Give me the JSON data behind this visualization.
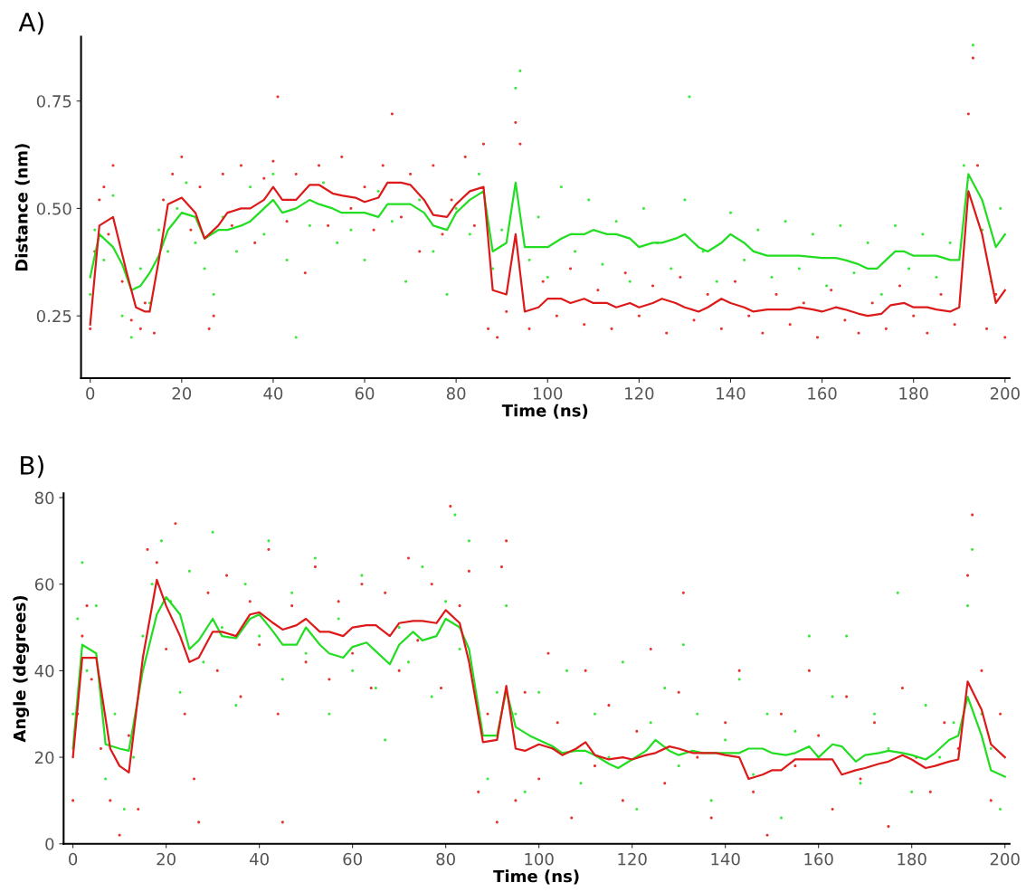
{
  "chart_data": [
    {
      "type": "scatter",
      "xlabel": "Time (ns)",
      "ylabel": "Distance (nm)",
      "annotations": [
        "A)"
      ],
      "xlim": [
        -2,
        201
      ],
      "ylim": [
        0.105,
        0.9
      ],
      "xticks": [
        0,
        20,
        40,
        60,
        80,
        100,
        120,
        140,
        160,
        180,
        200
      ],
      "yticks": [
        {
          "value": 0.25,
          "label": "0.25"
        },
        {
          "value": 0.5,
          "label": "0.50"
        },
        {
          "value": 0.75,
          "label": "0.75"
        }
      ],
      "grid": false,
      "series": [
        {
          "color": "#3de83d",
          "x": [
            0,
            1,
            3,
            5,
            7,
            9,
            11,
            13,
            15,
            17,
            19,
            21,
            23,
            25,
            27,
            29,
            32,
            35,
            38,
            40,
            43,
            45,
            48,
            51,
            54,
            57,
            60,
            63,
            66,
            69,
            72,
            75,
            78,
            80,
            83,
            85,
            88,
            90,
            93,
            94,
            96,
            98,
            100,
            103,
            106,
            109,
            112,
            115,
            118,
            121,
            124,
            127,
            130,
            131,
            134,
            137,
            140,
            143,
            146,
            149,
            152,
            155,
            158,
            161,
            164,
            167,
            170,
            173,
            176,
            179,
            182,
            185,
            188,
            191,
            193,
            195,
            197,
            199
          ],
          "values": [
            0.3,
            0.45,
            0.38,
            0.53,
            0.25,
            0.2,
            0.36,
            0.28,
            0.45,
            0.4,
            0.5,
            0.56,
            0.42,
            0.36,
            0.3,
            0.48,
            0.4,
            0.55,
            0.44,
            0.58,
            0.38,
            0.2,
            0.46,
            0.56,
            0.42,
            0.45,
            0.38,
            0.54,
            0.47,
            0.33,
            0.52,
            0.4,
            0.3,
            0.5,
            0.44,
            0.58,
            0.36,
            0.45,
            0.78,
            0.82,
            0.38,
            0.48,
            0.34,
            0.55,
            0.4,
            0.52,
            0.37,
            0.47,
            0.33,
            0.5,
            0.42,
            0.36,
            0.52,
            0.76,
            0.4,
            0.33,
            0.49,
            0.38,
            0.45,
            0.34,
            0.47,
            0.36,
            0.44,
            0.32,
            0.46,
            0.35,
            0.42,
            0.3,
            0.46,
            0.36,
            0.44,
            0.34,
            0.42,
            0.6,
            0.88,
            0.45,
            0.33,
            0.5
          ]
        },
        {
          "color": "#e8332e",
          "x": [
            0,
            1,
            2,
            3,
            4,
            5,
            7,
            9,
            11,
            12,
            14,
            16,
            18,
            20,
            22,
            24,
            26,
            27,
            29,
            31,
            33,
            36,
            38,
            40,
            41,
            43,
            45,
            47,
            50,
            52,
            55,
            57,
            60,
            62,
            64,
            66,
            68,
            70,
            72,
            75,
            77,
            79,
            82,
            84,
            86,
            87,
            89,
            91,
            93,
            94,
            96,
            99,
            102,
            105,
            108,
            111,
            114,
            117,
            120,
            123,
            126,
            129,
            132,
            135,
            138,
            141,
            144,
            147,
            150,
            153,
            156,
            159,
            162,
            165,
            168,
            171,
            174,
            177,
            180,
            183,
            186,
            189,
            192,
            193,
            194,
            196,
            198,
            200
          ],
          "values": [
            0.22,
            0.4,
            0.52,
            0.55,
            0.44,
            0.6,
            0.33,
            0.24,
            0.22,
            0.28,
            0.21,
            0.52,
            0.58,
            0.62,
            0.45,
            0.55,
            0.22,
            0.25,
            0.58,
            0.46,
            0.6,
            0.42,
            0.57,
            0.61,
            0.76,
            0.47,
            0.58,
            0.35,
            0.6,
            0.46,
            0.62,
            0.5,
            0.55,
            0.45,
            0.6,
            0.72,
            0.48,
            0.58,
            0.4,
            0.6,
            0.44,
            0.52,
            0.62,
            0.46,
            0.65,
            0.22,
            0.2,
            0.26,
            0.7,
            0.65,
            0.22,
            0.33,
            0.25,
            0.36,
            0.23,
            0.31,
            0.22,
            0.35,
            0.25,
            0.32,
            0.21,
            0.34,
            0.24,
            0.3,
            0.22,
            0.33,
            0.25,
            0.21,
            0.3,
            0.23,
            0.28,
            0.2,
            0.31,
            0.24,
            0.21,
            0.28,
            0.22,
            0.32,
            0.25,
            0.21,
            0.3,
            0.23,
            0.72,
            0.85,
            0.6,
            0.22,
            0.3,
            0.2
          ]
        },
        {
          "type": "line",
          "color": "#22dd22",
          "x": [
            0,
            2,
            5,
            7,
            9,
            11,
            13,
            15,
            17,
            20,
            23,
            25,
            28,
            30,
            33,
            35,
            38,
            40,
            42,
            45,
            48,
            50,
            53,
            55,
            58,
            60,
            63,
            65,
            68,
            70,
            73,
            75,
            78,
            80,
            83,
            86,
            88,
            91,
            93,
            95,
            98,
            100,
            103,
            105,
            108,
            110,
            113,
            115,
            118,
            120,
            123,
            125,
            128,
            130,
            133,
            135,
            138,
            140,
            143,
            145,
            148,
            150,
            155,
            160,
            163,
            165,
            168,
            170,
            172,
            174,
            176,
            178,
            180,
            183,
            185,
            188,
            190,
            192,
            195,
            198,
            200
          ],
          "values": [
            0.34,
            0.44,
            0.41,
            0.37,
            0.31,
            0.32,
            0.35,
            0.39,
            0.45,
            0.49,
            0.48,
            0.43,
            0.45,
            0.45,
            0.46,
            0.47,
            0.5,
            0.52,
            0.49,
            0.5,
            0.52,
            0.51,
            0.5,
            0.49,
            0.49,
            0.49,
            0.48,
            0.51,
            0.51,
            0.51,
            0.49,
            0.46,
            0.45,
            0.49,
            0.52,
            0.54,
            0.4,
            0.42,
            0.56,
            0.41,
            0.41,
            0.41,
            0.43,
            0.44,
            0.44,
            0.45,
            0.44,
            0.44,
            0.43,
            0.41,
            0.42,
            0.42,
            0.43,
            0.44,
            0.41,
            0.4,
            0.42,
            0.44,
            0.42,
            0.4,
            0.39,
            0.39,
            0.39,
            0.385,
            0.385,
            0.38,
            0.37,
            0.36,
            0.36,
            0.38,
            0.4,
            0.4,
            0.39,
            0.39,
            0.39,
            0.38,
            0.38,
            0.58,
            0.52,
            0.41,
            0.44
          ]
        },
        {
          "type": "line",
          "color": "#dd1a1a",
          "x": [
            0,
            2,
            5,
            8,
            10,
            12,
            13,
            15,
            17,
            20,
            23,
            25,
            28,
            30,
            33,
            35,
            38,
            40,
            42,
            45,
            48,
            50,
            53,
            55,
            58,
            60,
            63,
            65,
            68,
            70,
            73,
            75,
            78,
            80,
            83,
            86,
            88,
            91,
            93,
            95,
            98,
            100,
            103,
            105,
            108,
            110,
            113,
            115,
            118,
            120,
            123,
            125,
            128,
            130,
            133,
            135,
            138,
            140,
            143,
            145,
            148,
            150,
            153,
            155,
            158,
            160,
            163,
            165,
            168,
            170,
            173,
            175,
            178,
            180,
            183,
            185,
            188,
            190,
            192,
            195,
            198,
            200
          ],
          "values": [
            0.23,
            0.46,
            0.48,
            0.35,
            0.27,
            0.26,
            0.26,
            0.38,
            0.51,
            0.525,
            0.49,
            0.43,
            0.46,
            0.49,
            0.5,
            0.5,
            0.52,
            0.55,
            0.52,
            0.52,
            0.555,
            0.555,
            0.535,
            0.53,
            0.525,
            0.515,
            0.525,
            0.56,
            0.56,
            0.555,
            0.52,
            0.485,
            0.48,
            0.51,
            0.54,
            0.55,
            0.31,
            0.3,
            0.44,
            0.26,
            0.27,
            0.29,
            0.29,
            0.28,
            0.29,
            0.28,
            0.28,
            0.27,
            0.28,
            0.27,
            0.28,
            0.29,
            0.28,
            0.27,
            0.26,
            0.27,
            0.29,
            0.28,
            0.27,
            0.26,
            0.265,
            0.265,
            0.265,
            0.27,
            0.265,
            0.26,
            0.27,
            0.265,
            0.255,
            0.25,
            0.255,
            0.275,
            0.28,
            0.27,
            0.27,
            0.265,
            0.26,
            0.27,
            0.54,
            0.44,
            0.28,
            0.31
          ]
        }
      ]
    },
    {
      "type": "scatter",
      "xlabel": "Time (ns)",
      "ylabel": "Angle (degrees)",
      "annotations": [
        "B)"
      ],
      "xlim": [
        -2,
        201
      ],
      "ylim": [
        0,
        81
      ],
      "xticks": [
        0,
        20,
        40,
        60,
        80,
        100,
        120,
        140,
        160,
        180,
        200
      ],
      "yticks": [
        0,
        20,
        40,
        60,
        80
      ],
      "grid": false,
      "series": [
        {
          "color": "#3de83d",
          "x": [
            0,
            1,
            2,
            3,
            5,
            7,
            9,
            11,
            13,
            15,
            17,
            19,
            21,
            23,
            25,
            28,
            30,
            32,
            35,
            37,
            40,
            42,
            45,
            47,
            50,
            52,
            55,
            57,
            60,
            62,
            65,
            67,
            70,
            72,
            75,
            77,
            80,
            82,
            83,
            85,
            87,
            89,
            91,
            93,
            95,
            97,
            100,
            103,
            106,
            109,
            112,
            115,
            118,
            121,
            124,
            127,
            130,
            131,
            134,
            137,
            140,
            143,
            146,
            149,
            152,
            155,
            158,
            160,
            163,
            166,
            169,
            172,
            175,
            177,
            180,
            183,
            186,
            189,
            192,
            193,
            195,
            197,
            199
          ],
          "values": [
            30,
            52,
            65,
            40,
            55,
            15,
            30,
            8,
            20,
            48,
            60,
            70,
            56,
            35,
            63,
            42,
            72,
            50,
            32,
            60,
            48,
            70,
            38,
            58,
            44,
            66,
            30,
            52,
            40,
            62,
            36,
            24,
            50,
            42,
            64,
            34,
            56,
            76,
            45,
            70,
            30,
            15,
            35,
            55,
            30,
            12,
            35,
            22,
            40,
            14,
            30,
            20,
            42,
            8,
            28,
            36,
            18,
            46,
            30,
            10,
            24,
            38,
            16,
            30,
            6,
            26,
            48,
            20,
            34,
            48,
            14,
            30,
            22,
            58,
            12,
            32,
            20,
            28,
            55,
            68,
            30,
            22,
            8
          ]
        },
        {
          "color": "#e8332e",
          "x": [
            0,
            1,
            2,
            3,
            4,
            6,
            8,
            10,
            12,
            14,
            16,
            18,
            20,
            22,
            24,
            26,
            27,
            29,
            31,
            33,
            36,
            38,
            40,
            42,
            44,
            45,
            47,
            50,
            52,
            55,
            57,
            60,
            62,
            64,
            67,
            70,
            72,
            74,
            77,
            79,
            81,
            83,
            85,
            87,
            89,
            91,
            92,
            93,
            95,
            97,
            100,
            102,
            104,
            107,
            110,
            112,
            115,
            118,
            121,
            124,
            127,
            130,
            131,
            134,
            137,
            140,
            143,
            146,
            149,
            152,
            155,
            158,
            160,
            163,
            166,
            169,
            172,
            175,
            178,
            181,
            184,
            187,
            190,
            192,
            193,
            195,
            197,
            199
          ],
          "values": [
            10,
            30,
            48,
            55,
            38,
            22,
            10,
            2,
            25,
            8,
            68,
            65,
            45,
            74,
            30,
            15,
            5,
            58,
            40,
            62,
            34,
            56,
            46,
            68,
            30,
            5,
            55,
            42,
            64,
            38,
            56,
            44,
            60,
            36,
            58,
            40,
            66,
            47,
            60,
            36,
            78,
            55,
            63,
            12,
            30,
            5,
            64,
            70,
            10,
            35,
            15,
            44,
            28,
            6,
            40,
            18,
            32,
            10,
            26,
            45,
            14,
            35,
            58,
            20,
            6,
            28,
            40,
            12,
            2,
            30,
            18,
            40,
            25,
            8,
            34,
            15,
            28,
            4,
            36,
            20,
            12,
            28,
            22,
            62,
            76,
            40,
            10,
            30
          ]
        },
        {
          "type": "line",
          "color": "#22dd22",
          "x": [
            0,
            2,
            5,
            7,
            10,
            12,
            15,
            18,
            20,
            23,
            25,
            27,
            30,
            32,
            35,
            38,
            40,
            43,
            45,
            48,
            50,
            53,
            55,
            58,
            60,
            63,
            65,
            68,
            70,
            73,
            75,
            78,
            80,
            83,
            85,
            88,
            91,
            93,
            95,
            98,
            100,
            103,
            105,
            108,
            110,
            112,
            115,
            117,
            120,
            123,
            125,
            128,
            130,
            133,
            135,
            138,
            140,
            143,
            145,
            148,
            150,
            153,
            155,
            158,
            160,
            163,
            165,
            168,
            170,
            173,
            175,
            178,
            180,
            183,
            185,
            188,
            190,
            192,
            195,
            197,
            200
          ],
          "values": [
            22,
            46,
            44,
            23,
            22,
            21.5,
            40,
            53,
            57,
            53,
            45,
            47,
            52,
            48,
            47.5,
            52,
            53,
            49,
            46,
            46,
            50,
            46,
            44,
            43,
            45.5,
            46.5,
            44.5,
            41.5,
            46,
            49,
            47,
            48,
            52,
            50,
            45,
            25,
            25,
            35.5,
            27,
            25,
            24,
            22.5,
            21,
            21.5,
            21.5,
            20.5,
            18.5,
            17.5,
            19.5,
            21.5,
            24,
            21.5,
            20.5,
            21.5,
            21,
            21,
            21,
            21,
            22,
            22,
            21,
            20.5,
            21,
            22.5,
            20,
            23,
            22.5,
            19,
            20.5,
            21,
            21.5,
            21,
            20.5,
            19.5,
            21,
            24,
            25,
            34,
            25,
            17,
            15.5
          ]
        },
        {
          "type": "line",
          "color": "#dd1a1a",
          "x": [
            0,
            2,
            5,
            8,
            10,
            12,
            15,
            18,
            20,
            23,
            25,
            27,
            30,
            32,
            35,
            38,
            40,
            43,
            45,
            48,
            50,
            53,
            55,
            58,
            60,
            63,
            65,
            68,
            70,
            73,
            75,
            78,
            80,
            83,
            85,
            88,
            91,
            93,
            95,
            97,
            100,
            103,
            105,
            108,
            110,
            112,
            115,
            118,
            120,
            123,
            125,
            128,
            130,
            133,
            135,
            138,
            140,
            143,
            145,
            148,
            150,
            152,
            155,
            158,
            160,
            163,
            165,
            168,
            170,
            173,
            175,
            178,
            180,
            183,
            185,
            188,
            190,
            192,
            195,
            197,
            200
          ],
          "values": [
            20,
            43,
            43,
            22,
            18,
            16.5,
            43,
            61,
            55,
            48,
            42,
            43,
            49,
            49,
            48,
            53,
            53.5,
            51,
            49.5,
            50.5,
            52,
            49,
            49,
            48,
            50,
            50.5,
            50.5,
            48,
            51,
            51.5,
            51.5,
            51,
            54,
            51,
            42,
            23.5,
            24,
            36.5,
            22,
            21.5,
            23,
            22,
            20.5,
            22,
            23.5,
            20.5,
            19.5,
            20,
            19.5,
            20.5,
            21,
            22.5,
            22,
            21,
            21,
            21,
            20.5,
            20,
            15,
            16,
            17,
            17,
            19.5,
            19.5,
            19.5,
            19.5,
            16,
            17,
            17.5,
            18.5,
            19,
            20.5,
            19.5,
            17.5,
            18,
            19,
            19.5,
            37.5,
            31,
            23,
            20
          ]
        }
      ]
    }
  ]
}
